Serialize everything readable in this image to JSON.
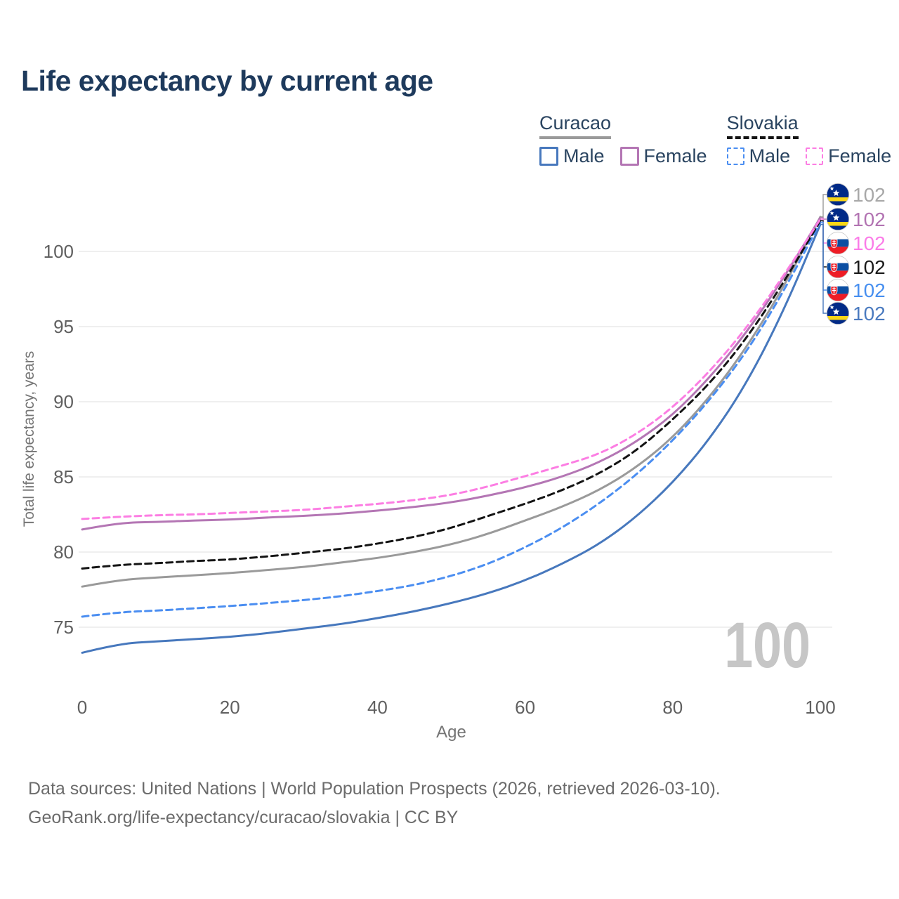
{
  "title": "Life expectancy by current age",
  "legend": {
    "groups": [
      {
        "name": "Curacao",
        "line_style": "solid",
        "line_sample_color": "#9a9a9a",
        "items": [
          {
            "label": "Male",
            "color": "#4778bd"
          },
          {
            "label": "Female",
            "color": "#b476b4"
          }
        ]
      },
      {
        "name": "Slovakia",
        "line_style": "dashed",
        "line_sample_color": "#141414",
        "items": [
          {
            "label": "Male",
            "color": "#4b8ef1"
          },
          {
            "label": "Female",
            "color": "#fc7ee3"
          }
        ]
      }
    ]
  },
  "watermark_age": "100",
  "footer": {
    "line1": "Data sources: United Nations | World Population Prospects (2026, retrieved 2026-03-10).",
    "line2": "GeoRank.org/life-expectancy/curacao/slovakia | CC BY"
  },
  "colors": {
    "title": "#1e3a5c",
    "legend_text": "#2a4460",
    "tick_label": "#606060",
    "axis_title": "#757575",
    "grid": "#eaeaea",
    "footer": "#6b6b6b",
    "watermark": "#c6c6c6"
  },
  "chart_data": {
    "type": "line",
    "title": "Life expectancy by current age",
    "xlabel": "Age",
    "ylabel": "Total life expectancy, years",
    "x_ticks": [
      0,
      20,
      40,
      60,
      80,
      100
    ],
    "y_ticks": [
      75,
      80,
      85,
      90,
      95,
      100
    ],
    "xlim": [
      0,
      100
    ],
    "ylim": [
      73,
      102.5
    ],
    "grid": "horizontal",
    "legend_position": "top-right",
    "ages": [
      0,
      5,
      10,
      15,
      20,
      25,
      30,
      35,
      40,
      45,
      50,
      55,
      60,
      65,
      70,
      75,
      80,
      85,
      90,
      95,
      100
    ],
    "series": [
      {
        "name": "Curacao Male",
        "country": "Curacao",
        "sex": "Male",
        "color": "#4778bd",
        "dash": false,
        "end_label": "102",
        "end_label_color": "#4a7abf",
        "values": [
          73.3,
          73.9,
          74.05,
          74.2,
          74.35,
          74.6,
          74.9,
          75.2,
          75.6,
          76.05,
          76.6,
          77.25,
          78.1,
          79.2,
          80.5,
          82.3,
          84.6,
          87.5,
          91.2,
          96.0,
          101.8
        ]
      },
      {
        "name": "Curacao Both sexes",
        "country": "Curacao",
        "sex": "Both",
        "color": "#9a9a9a",
        "dash": false,
        "end_label": "102",
        "end_label_color": "#a8a8a8",
        "values": [
          77.7,
          78.15,
          78.3,
          78.45,
          78.6,
          78.8,
          79.0,
          79.3,
          79.6,
          80.0,
          80.5,
          81.2,
          82.1,
          83.0,
          84.1,
          85.6,
          87.6,
          90.3,
          93.6,
          97.6,
          102.3
        ]
      },
      {
        "name": "Curacao Female",
        "country": "Curacao",
        "sex": "Female",
        "color": "#b476b4",
        "dash": false,
        "end_label": "102",
        "end_label_color": "#b273b2",
        "values": [
          81.5,
          81.95,
          82.0,
          82.1,
          82.15,
          82.3,
          82.4,
          82.55,
          82.75,
          83.0,
          83.3,
          83.75,
          84.3,
          85.0,
          85.95,
          87.3,
          89.1,
          91.6,
          94.6,
          98.2,
          102.25
        ]
      },
      {
        "name": "Slovakia Male",
        "country": "Slovakia",
        "sex": "Male",
        "color": "#4b8ef1",
        "dash": true,
        "end_label": "102",
        "end_label_color": "#478ff0",
        "values": [
          75.7,
          76.0,
          76.1,
          76.25,
          76.4,
          76.6,
          76.8,
          77.05,
          77.4,
          77.8,
          78.4,
          79.2,
          80.3,
          81.6,
          83.2,
          85.1,
          87.4,
          90.1,
          93.3,
          97.3,
          101.95
        ]
      },
      {
        "name": "Slovakia Both sexes",
        "country": "Slovakia",
        "sex": "Both",
        "color": "#141414",
        "dash": true,
        "end_label": "102",
        "end_label_color": "#1a1a1a",
        "values": [
          78.9,
          79.15,
          79.25,
          79.4,
          79.5,
          79.7,
          79.95,
          80.2,
          80.55,
          81.0,
          81.6,
          82.4,
          83.2,
          84.1,
          85.2,
          86.7,
          88.8,
          91.2,
          94.2,
          97.9,
          102.05
        ]
      },
      {
        "name": "Slovakia Female",
        "country": "Slovakia",
        "sex": "Female",
        "color": "#fc7ee3",
        "dash": true,
        "end_label": "102",
        "end_label_color": "#fb7ce8",
        "values": [
          82.2,
          82.35,
          82.45,
          82.5,
          82.6,
          82.7,
          82.8,
          83.0,
          83.2,
          83.45,
          83.8,
          84.35,
          85.05,
          85.75,
          86.5,
          87.8,
          89.6,
          92.0,
          94.9,
          98.35,
          102.15
        ]
      }
    ]
  }
}
